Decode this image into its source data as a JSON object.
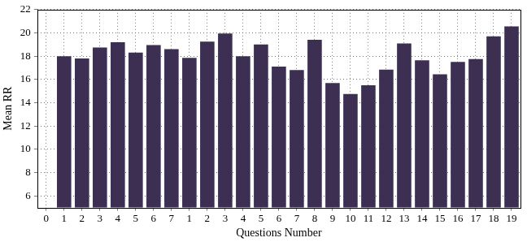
{
  "chart_data": {
    "type": "bar",
    "x_label": "Questions Number",
    "y_label": "Mean RR",
    "categories": [
      "0",
      "1",
      "2",
      "3",
      "4",
      "5",
      "6",
      "7",
      "1",
      "2",
      "3",
      "4",
      "5",
      "6",
      "7",
      "8",
      "9",
      "10",
      "11",
      "12",
      "13",
      "14",
      "15",
      "16",
      "17",
      "18",
      "19"
    ],
    "values": [
      null,
      18.0,
      17.8,
      18.75,
      19.2,
      18.3,
      18.95,
      18.6,
      17.85,
      19.25,
      19.95,
      18.0,
      19.0,
      17.1,
      16.8,
      19.4,
      15.7,
      14.75,
      15.5,
      16.85,
      19.1,
      17.65,
      16.45,
      17.5,
      17.75,
      19.7,
      20.55
    ],
    "color": "#3d2f52",
    "ylim": [
      5,
      22
    ],
    "yticks": [
      6,
      8,
      10,
      12,
      14,
      16,
      18,
      20,
      22
    ],
    "grid": true
  }
}
